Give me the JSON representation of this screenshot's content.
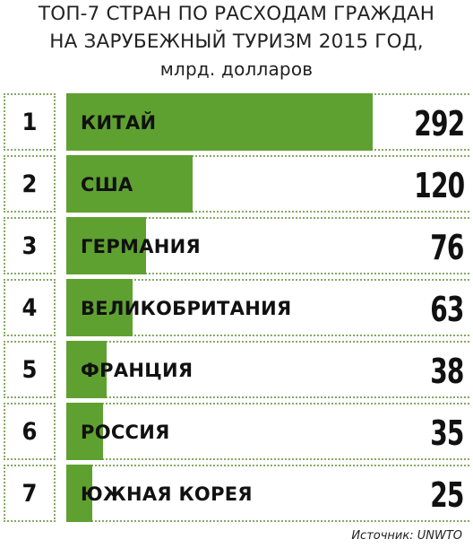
{
  "title_line1": "ТОП-7 СТРАН ПО РАСХОДАМ ГРАЖДАН",
  "title_line2": "НА ЗАРУБЕЖНЫЙ ТУРИЗМ 2015 ГОД,",
  "title_line3": "млрд. долларов",
  "source": "Источник: UNWTO",
  "colors": {
    "bar": "#5fa130",
    "dots": "#86a865"
  },
  "chart_data": {
    "type": "bar",
    "orientation": "horizontal",
    "title": "ТОП-7 СТРАН ПО РАСХОДАМ ГРАЖДАН НА ЗАРУБЕЖНЫЙ ТУРИЗМ 2015 ГОД, млрд. долларов",
    "ranks": [
      "1",
      "2",
      "3",
      "4",
      "5",
      "6",
      "7"
    ],
    "categories": [
      "КИТАЙ",
      "США",
      "ГЕРМАНИЯ",
      "ВЕЛИКОБРИТАНИЯ",
      "ФРАНЦИЯ",
      "РОССИЯ",
      "ЮЖНАЯ КОРЕЯ"
    ],
    "values": [
      292,
      120,
      76,
      63,
      38,
      35,
      25
    ],
    "grid": false,
    "legend": "none"
  }
}
